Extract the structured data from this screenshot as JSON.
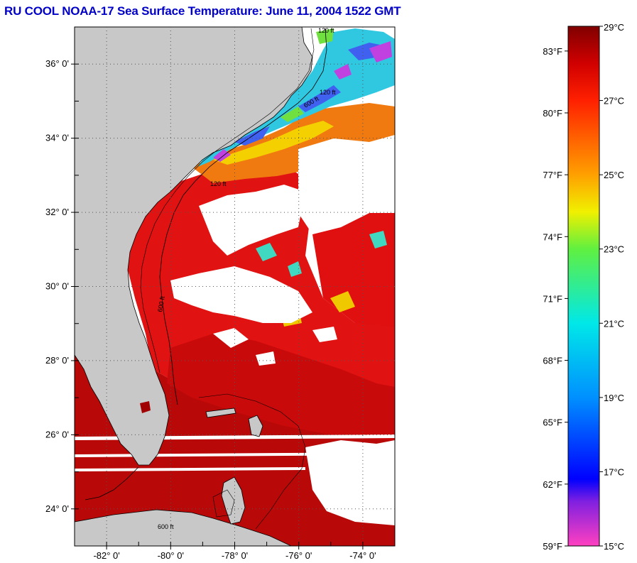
{
  "title": "RU COOL  NOAA-17  Sea Surface Temperature:  June 11, 2004 1522 GMT",
  "map": {
    "lat_range": [
      23,
      37
    ],
    "lon_range": [
      -83,
      -73
    ],
    "lat_ticks": [
      {
        "value": 36,
        "label": "36° 0'"
      },
      {
        "value": 34,
        "label": "34° 0'"
      },
      {
        "value": 32,
        "label": "32° 0'"
      },
      {
        "value": 30,
        "label": "30° 0'"
      },
      {
        "value": 28,
        "label": "28° 0'"
      },
      {
        "value": 26,
        "label": "26° 0'"
      },
      {
        "value": 24,
        "label": "24° 0'"
      }
    ],
    "lon_ticks": [
      {
        "value": -82,
        "label": "-82° 0'"
      },
      {
        "value": -80,
        "label": "-80° 0'"
      },
      {
        "value": -78,
        "label": "-78° 0'"
      },
      {
        "value": -76,
        "label": "-76° 0'"
      },
      {
        "value": -74,
        "label": "-74° 0'"
      }
    ],
    "isobath_labels": [
      "120 ft",
      "120 ft",
      "600 ft",
      "600 ft",
      "120 ft",
      "600 ft"
    ],
    "colors": {
      "land": "#c8c8c8",
      "cloud": "#ffffff",
      "warm": "#e01010",
      "hot": "#b00808",
      "orange": "#f07010"
    }
  },
  "colorbar": {
    "celsius_range": [
      15,
      29
    ],
    "fahrenheit_range": [
      59,
      84.2
    ],
    "celsius_labels": [
      "29°C",
      "27°C",
      "25°C",
      "23°C",
      "21°C",
      "19°C",
      "17°C",
      "15°C"
    ],
    "fahrenheit_labels": [
      "83°F",
      "80°F",
      "77°F",
      "74°F",
      "71°F",
      "68°F",
      "65°F",
      "62°F",
      "59°F"
    ],
    "stops": [
      {
        "c": 15,
        "color": "#ff40c0"
      },
      {
        "c": 16.2,
        "color": "#8020e0"
      },
      {
        "c": 16.8,
        "color": "#0000ff"
      },
      {
        "c": 19,
        "color": "#0090ff"
      },
      {
        "c": 21,
        "color": "#00e8e8"
      },
      {
        "c": 23,
        "color": "#60f040"
      },
      {
        "c": 24,
        "color": "#f0f000"
      },
      {
        "c": 25,
        "color": "#ffa000"
      },
      {
        "c": 27,
        "color": "#ff2000"
      },
      {
        "c": 28,
        "color": "#d00000"
      },
      {
        "c": 29,
        "color": "#800000"
      }
    ]
  }
}
